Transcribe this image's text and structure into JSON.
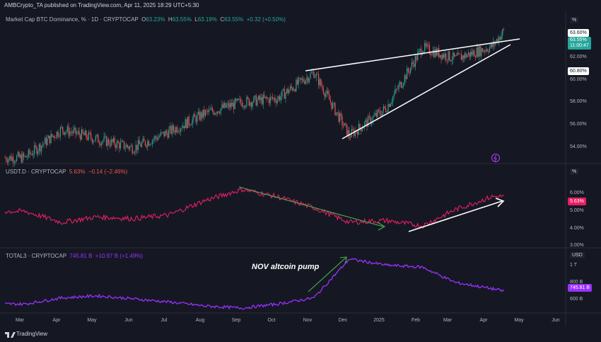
{
  "publisher_line": "AMBCrypto_TA published on TradingView.com, Apr 11, 2025 18:29 UTC+5:30",
  "footer_brand": "TradingView",
  "colors": {
    "up": "#26a69a",
    "down": "#ef5350",
    "usdt": "#e91e63",
    "total3": "#9b30ff",
    "annotation": "#ffffff",
    "arrow_green": "#4caf50",
    "bg": "#151823"
  },
  "pane1": {
    "title": "Market Cap BTC Dominance, % · 1D · CRYPTOCAP",
    "o_label": "O",
    "o": "63.23%",
    "h_label": "H",
    "h": "63.55%",
    "l_label": "L",
    "l": "63.19%",
    "c_label": "C",
    "c": "63.55%",
    "chg": "+0.32 (+0.50%)",
    "unit": "%",
    "tag_high": "63.60%",
    "tag_last": "63.55%",
    "tag_time": "11:00:47",
    "tag_low": "60.80%",
    "ticks": [
      "62.00%",
      "60.00%",
      "58.00%",
      "56.00%",
      "54.00%"
    ]
  },
  "pane2": {
    "title": "USDT.D · CRYPTOCAP",
    "value": "5.63%",
    "chg": "−0.14 (−2.46%)",
    "unit": "%",
    "tag_last": "5.63%",
    "ticks": [
      "6.00%",
      "5.00%",
      "4.00%",
      "3.00%"
    ]
  },
  "pane3": {
    "title": "TOTAL3 · CRYPTOCAP",
    "value": "745.81 B",
    "chg": "+10.97 B (+1.49%)",
    "unit": "USD",
    "tag_last": "745.81 B",
    "ticks": [
      "1 T",
      "800 B",
      "600 B"
    ],
    "annotation": "NOV altcoin pump"
  },
  "x_axis": [
    "Mar",
    "Apr",
    "May",
    "Jun",
    "Jul",
    "Aug",
    "Sep",
    "Oct",
    "Nov",
    "Dec",
    "2025",
    "Feb",
    "Mar",
    "Apr",
    "May",
    "Jun"
  ],
  "chart_data": [
    {
      "type": "line",
      "title": "Market Cap BTC Dominance, % · 1D · CRYPTOCAP",
      "x": [
        "2024-03-01",
        "2024-04-01",
        "2024-05-01",
        "2024-06-01",
        "2024-07-01",
        "2024-08-01",
        "2024-09-01",
        "2024-10-01",
        "2024-11-01",
        "2024-12-01",
        "2025-01-01",
        "2025-02-01",
        "2025-03-01",
        "2025-04-01",
        "2025-04-11"
      ],
      "series": [
        {
          "values": [
            53.3,
            55.6,
            54.8,
            54.1,
            55.4,
            56.9,
            57.8,
            58.1,
            60.2,
            55.1,
            57.3,
            62.2,
            61.3,
            62.3,
            63.55
          ]
        }
      ],
      "ylim": [
        53,
        64
      ]
    },
    {
      "type": "line",
      "title": "USDT.D · CRYPTOCAP",
      "x": [
        "2024-03-01",
        "2024-04-01",
        "2024-05-01",
        "2024-06-01",
        "2024-07-01",
        "2024-08-01",
        "2024-09-01",
        "2024-10-01",
        "2024-11-01",
        "2024-12-01",
        "2025-01-01",
        "2025-02-01",
        "2025-03-01",
        "2025-04-01",
        "2025-04-11"
      ],
      "series": [
        {
          "values": [
            4.8,
            4.2,
            4.5,
            4.4,
            4.6,
            5.4,
            6.0,
            5.6,
            5.0,
            4.2,
            4.3,
            4.0,
            4.9,
            5.6,
            5.63
          ]
        }
      ],
      "ylim": [
        3,
        6.6
      ]
    },
    {
      "type": "line",
      "title": "TOTAL3 · CRYPTOCAP",
      "x": [
        "2024-03-01",
        "2024-04-01",
        "2024-05-01",
        "2024-06-01",
        "2024-07-01",
        "2024-08-01",
        "2024-09-01",
        "2024-10-01",
        "2024-11-01",
        "2024-12-01",
        "2025-01-01",
        "2025-02-01",
        "2025-03-01",
        "2025-04-01",
        "2025-04-11"
      ],
      "series": [
        {
          "values": [
            620,
            680,
            700,
            670,
            640,
            600,
            580,
            620,
            680,
            1060,
            1000,
            980,
            830,
            770,
            745.81
          ]
        }
      ],
      "ylim": [
        560,
        1100
      ]
    }
  ]
}
